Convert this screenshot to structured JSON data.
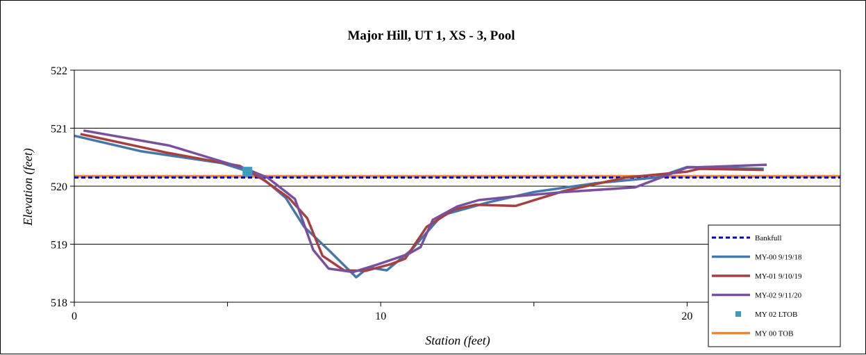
{
  "chart_data": {
    "type": "line",
    "title": "Major Hill, UT 1, XS - 3, Pool",
    "xlabel": "Station (feet)",
    "ylabel": "Elevation (feet)",
    "xlim": [
      0,
      25
    ],
    "ylim": [
      518,
      522
    ],
    "x_ticks": [
      0,
      10,
      20
    ],
    "x_minor_ticks": [
      5,
      15
    ],
    "y_ticks": [
      518,
      519,
      520,
      521,
      522
    ],
    "grid": "horizontal",
    "legend_position": "bottom-right",
    "series": [
      {
        "name": "Bankfull",
        "color": "#0000cc",
        "style": "dashed",
        "points": [
          [
            0,
            520.15
          ],
          [
            25,
            520.15
          ]
        ]
      },
      {
        "name": "MY-00 9/19/18",
        "color": "#4477aa",
        "style": "solid",
        "points": [
          [
            0,
            520.87
          ],
          [
            2.2,
            520.6
          ],
          [
            4.8,
            520.4
          ],
          [
            6.0,
            520.2
          ],
          [
            6.9,
            519.8
          ],
          [
            7.5,
            519.3
          ],
          [
            8.3,
            518.9
          ],
          [
            9.2,
            518.43
          ],
          [
            9.6,
            518.6
          ],
          [
            10.2,
            518.55
          ],
          [
            11.0,
            518.9
          ],
          [
            12.0,
            519.5
          ],
          [
            13.5,
            519.72
          ],
          [
            15.0,
            519.9
          ],
          [
            17.0,
            520.05
          ],
          [
            19.0,
            520.15
          ],
          [
            20.0,
            520.33
          ],
          [
            22.5,
            520.3
          ]
        ]
      },
      {
        "name": "MY-01 9/10/19",
        "color": "#a64040",
        "style": "solid",
        "points": [
          [
            0.2,
            520.9
          ],
          [
            3.0,
            520.58
          ],
          [
            5.4,
            520.35
          ],
          [
            6.2,
            520.1
          ],
          [
            7.0,
            519.8
          ],
          [
            7.6,
            519.45
          ],
          [
            8.1,
            518.8
          ],
          [
            8.8,
            518.55
          ],
          [
            9.5,
            518.54
          ],
          [
            10.3,
            518.65
          ],
          [
            10.8,
            518.75
          ],
          [
            11.5,
            519.3
          ],
          [
            12.4,
            519.6
          ],
          [
            13.1,
            519.68
          ],
          [
            14.4,
            519.66
          ],
          [
            16.0,
            519.92
          ],
          [
            18.0,
            520.15
          ],
          [
            20.0,
            520.25
          ],
          [
            20.4,
            520.3
          ],
          [
            22.5,
            520.28
          ]
        ]
      },
      {
        "name": "MY-02 9/11/20",
        "color": "#7b4fa0",
        "style": "solid",
        "points": [
          [
            0.3,
            520.96
          ],
          [
            3.1,
            520.7
          ],
          [
            5.6,
            520.3
          ],
          [
            6.3,
            520.15
          ],
          [
            7.2,
            519.78
          ],
          [
            7.8,
            518.9
          ],
          [
            8.3,
            518.58
          ],
          [
            9.1,
            518.52
          ],
          [
            9.9,
            518.65
          ],
          [
            10.9,
            518.83
          ],
          [
            11.3,
            518.95
          ],
          [
            11.7,
            519.42
          ],
          [
            12.5,
            519.65
          ],
          [
            13.2,
            519.76
          ],
          [
            14.3,
            519.82
          ],
          [
            16.0,
            519.9
          ],
          [
            18.3,
            519.98
          ],
          [
            20.0,
            520.32
          ],
          [
            22.6,
            520.37
          ]
        ]
      },
      {
        "name": "MY 02 LTOB",
        "color": "#3e9dbf",
        "style": "marker",
        "points": [
          [
            5.65,
            520.25
          ]
        ]
      },
      {
        "name": "MY 00 TOB",
        "color": "#e8883a",
        "style": "solid",
        "points": [
          [
            0,
            520.17
          ],
          [
            25,
            520.17
          ]
        ]
      }
    ]
  }
}
